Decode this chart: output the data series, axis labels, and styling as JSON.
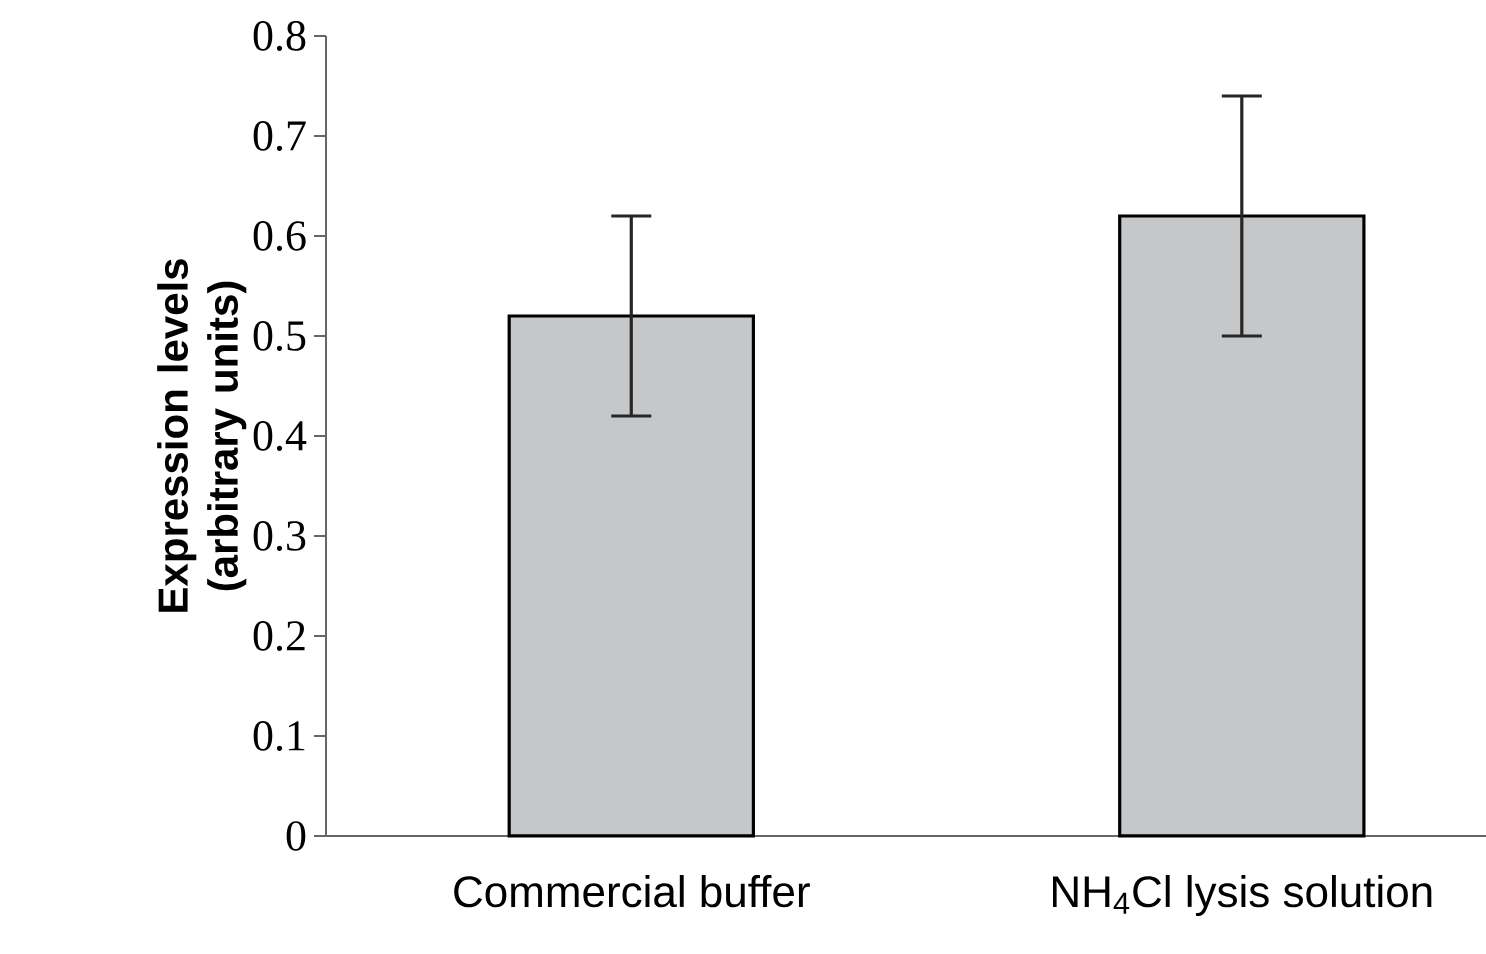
{
  "chart_data": {
    "type": "bar",
    "ylabel": "Expression levels (arbitrary units)",
    "categories": [
      "Commercial buffer",
      "NH$_{4}$Cl lysis solution"
    ],
    "values": [
      0.52,
      0.62
    ],
    "color": "#c6c7c9",
    "errors": [
      0.1,
      [
        0.5,
        0.74
      ]
    ],
    "ylim": [
      0,
      0.8
    ],
    "yticks": [
      0,
      0.1,
      0.2,
      0.3,
      0.4,
      0.5,
      0.6,
      0.7,
      0.8
    ],
    "grid": false
  }
}
